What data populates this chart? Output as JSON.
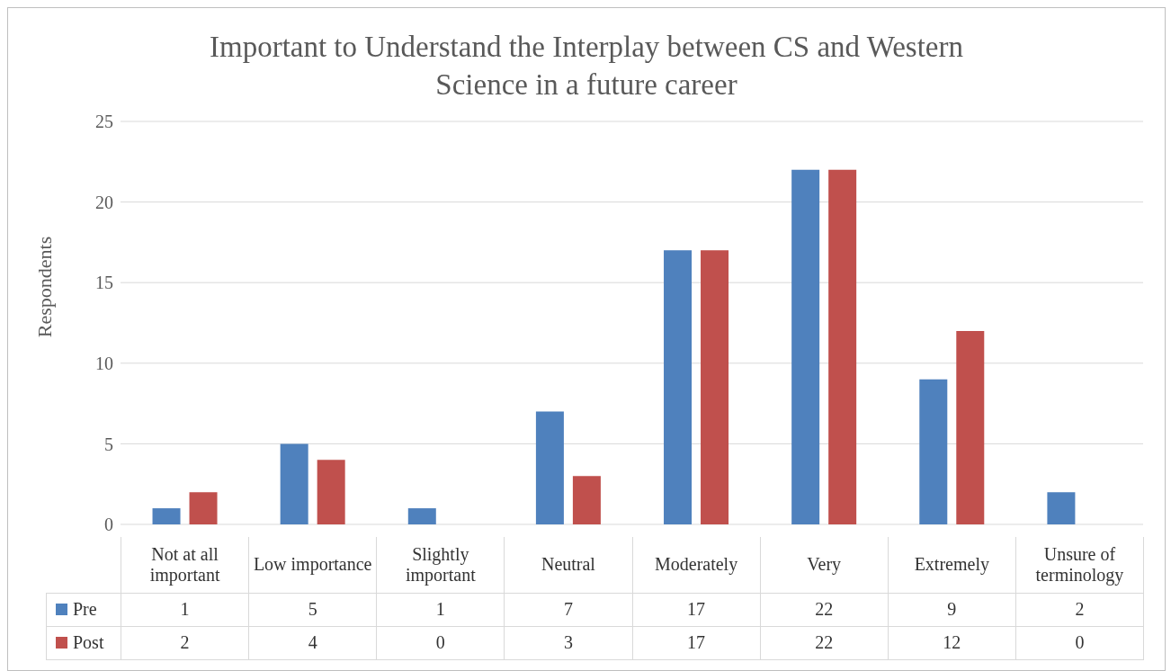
{
  "chart_data": {
    "type": "bar",
    "title": "Important to Understand the Interplay between CS and Western Science in a future career",
    "ylabel": "Respondents",
    "categories": [
      "Not at all important",
      "Low importance",
      "Slightly important",
      "Neutral",
      "Moderately",
      "Very",
      "Extremely",
      "Unsure of terminology"
    ],
    "series": [
      {
        "name": "Pre",
        "color": "#4f81bd",
        "values": [
          1,
          5,
          1,
          7,
          17,
          22,
          9,
          2
        ]
      },
      {
        "name": "Post",
        "color": "#c0504d",
        "values": [
          2,
          4,
          0,
          3,
          17,
          22,
          12,
          0
        ]
      }
    ],
    "ylim": [
      0,
      25
    ],
    "yticks": [
      0,
      5,
      10,
      15,
      20,
      25
    ],
    "grid": "y",
    "legend": "bottom",
    "data_labels": true
  }
}
